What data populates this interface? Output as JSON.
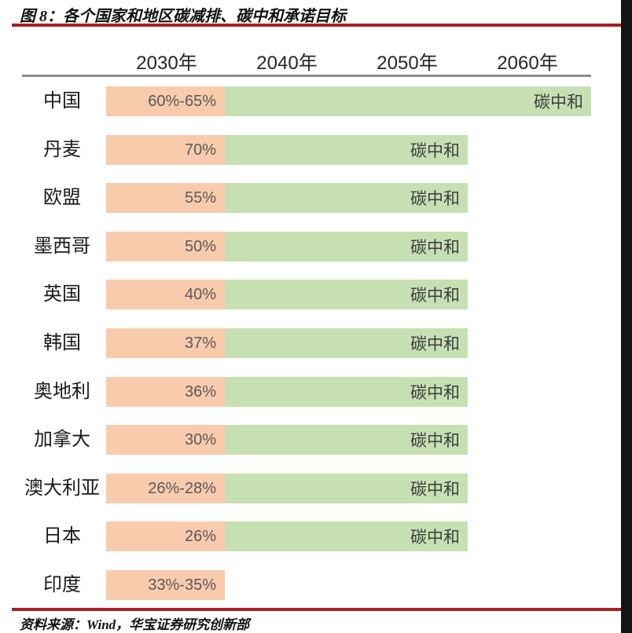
{
  "figure": {
    "title": "图 8：各个国家和地区碳减排、碳中和承诺目标",
    "source": "资料来源：Wind，华宝证券研究创新部"
  },
  "chart_data": {
    "type": "bar",
    "title": "各个国家和地区碳减排、碳中和承诺目标",
    "orientation": "horizontal",
    "year_columns": [
      "2030年",
      "2040年",
      "2050年",
      "2060年"
    ],
    "encoding": {
      "orange_bar": "2030年碳减排承诺目标",
      "green_bar": "碳中和承诺（绿条延伸至承诺年份）"
    },
    "rows": [
      {
        "country": "中国",
        "target_2030": "60%-65%",
        "neutral_label": "碳中和",
        "neutral_year": 2060
      },
      {
        "country": "丹麦",
        "target_2030": "70%",
        "neutral_label": "碳中和",
        "neutral_year": 2050
      },
      {
        "country": "欧盟",
        "target_2030": "55%",
        "neutral_label": "碳中和",
        "neutral_year": 2050
      },
      {
        "country": "墨西哥",
        "target_2030": "50%",
        "neutral_label": "碳中和",
        "neutral_year": 2050
      },
      {
        "country": "英国",
        "target_2030": "40%",
        "neutral_label": "碳中和",
        "neutral_year": 2050
      },
      {
        "country": "韩国",
        "target_2030": "37%",
        "neutral_label": "碳中和",
        "neutral_year": 2050
      },
      {
        "country": "奥地利",
        "target_2030": "36%",
        "neutral_label": "碳中和",
        "neutral_year": 2050
      },
      {
        "country": "加拿大",
        "target_2030": "30%",
        "neutral_label": "碳中和",
        "neutral_year": 2050
      },
      {
        "country": "澳大利亚",
        "target_2030": "26%-28%",
        "neutral_label": "碳中和",
        "neutral_year": 2050
      },
      {
        "country": "日本",
        "target_2030": "26%",
        "neutral_label": "碳中和",
        "neutral_year": 2050
      },
      {
        "country": "印度",
        "target_2030": "33%-35%",
        "neutral_label": null,
        "neutral_year": null
      }
    ],
    "legend": null,
    "grid": false
  },
  "colors": {
    "rule_red": "#AC1F24",
    "rule_gray": "#8C8C8C",
    "bar_orange": "#F8CBAD",
    "bar_green": "#C6E0B4",
    "edge_black": "#141414"
  }
}
